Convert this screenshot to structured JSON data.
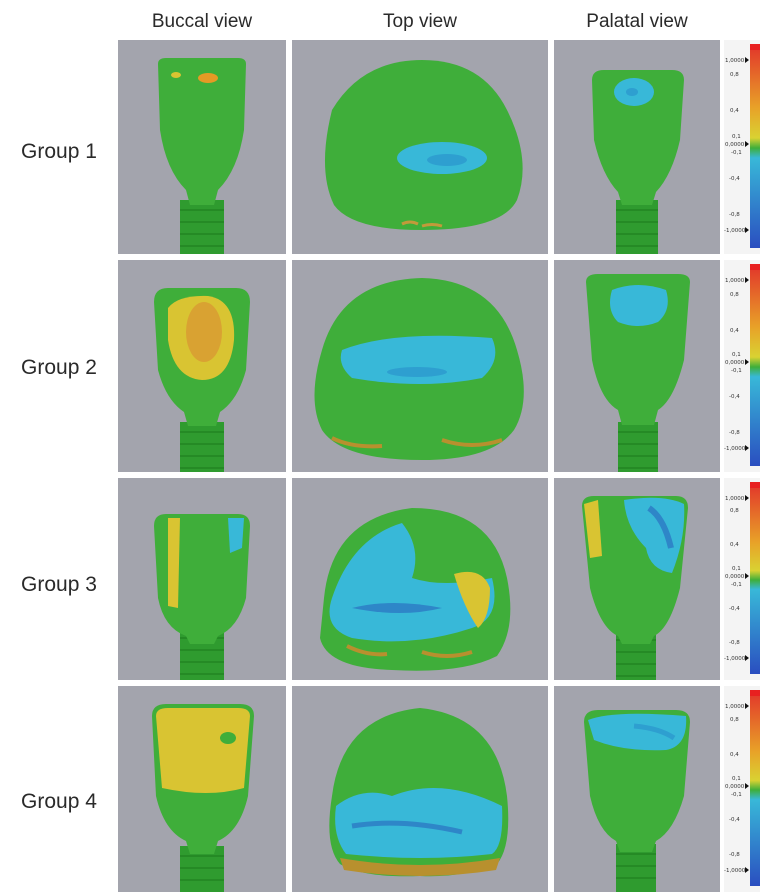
{
  "column_headers": [
    "Buccal view",
    "Top view",
    "Palatal view"
  ],
  "rows": [
    {
      "label": "Group 1"
    },
    {
      "label": "Group 2"
    },
    {
      "label": "Group 3"
    },
    {
      "label": "Group 4"
    }
  ],
  "color_scale": {
    "ticks": [
      "1,0000",
      "0,8",
      "0,4",
      "0,0000",
      "-0,4",
      "-0,8",
      "-1,0000"
    ],
    "tolerance_labels": [
      "0,1",
      "-0,1"
    ]
  },
  "colors": {
    "background": "#a3a4ad",
    "tooth_green": "#3fae3a",
    "deviation_cyan": "#38b8d8",
    "deviation_blue": "#2e86c8",
    "deviation_yellow": "#d9c432",
    "deviation_orange": "#e59a25"
  }
}
